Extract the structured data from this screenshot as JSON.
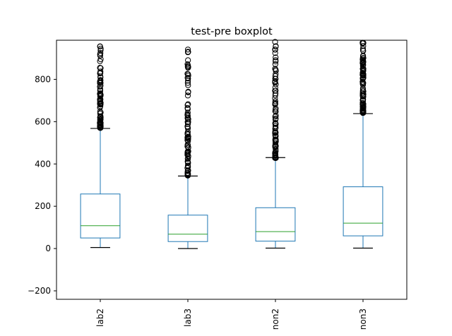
{
  "chart_data": {
    "type": "boxplot",
    "title": "test-pre boxplot",
    "xlabel": "",
    "ylabel": "",
    "ylim": [
      -240,
      985
    ],
    "yticks": [
      -200,
      0,
      200,
      400,
      600,
      800
    ],
    "ytick_labels": [
      "−200",
      "0",
      "200",
      "400",
      "600",
      "800"
    ],
    "grid": false,
    "box_color": "#1f77b4",
    "median_color": "#2ca02c",
    "whisker_color": "#1f77b4",
    "cap_color": "#000000",
    "flier_color": "#000000",
    "categories": [
      "lab2",
      "lab3",
      "non2",
      "non3"
    ],
    "series": [
      {
        "category": "lab2",
        "whislo": 5,
        "q1": 50,
        "med": 108,
        "q3": 258,
        "whishi": 568,
        "outlier_range": [
          570,
          985
        ]
      },
      {
        "category": "lab3",
        "whislo": 0,
        "q1": 33,
        "med": 68,
        "q3": 158,
        "whishi": 343,
        "outlier_range": [
          345,
          968
        ]
      },
      {
        "category": "non2",
        "whislo": 2,
        "q1": 35,
        "med": 80,
        "q3": 193,
        "whishi": 430,
        "outlier_range": [
          428,
          985
        ]
      },
      {
        "category": "non3",
        "whislo": 2,
        "q1": 60,
        "med": 120,
        "q3": 292,
        "whishi": 638,
        "outlier_range": [
          640,
          985
        ]
      }
    ]
  }
}
